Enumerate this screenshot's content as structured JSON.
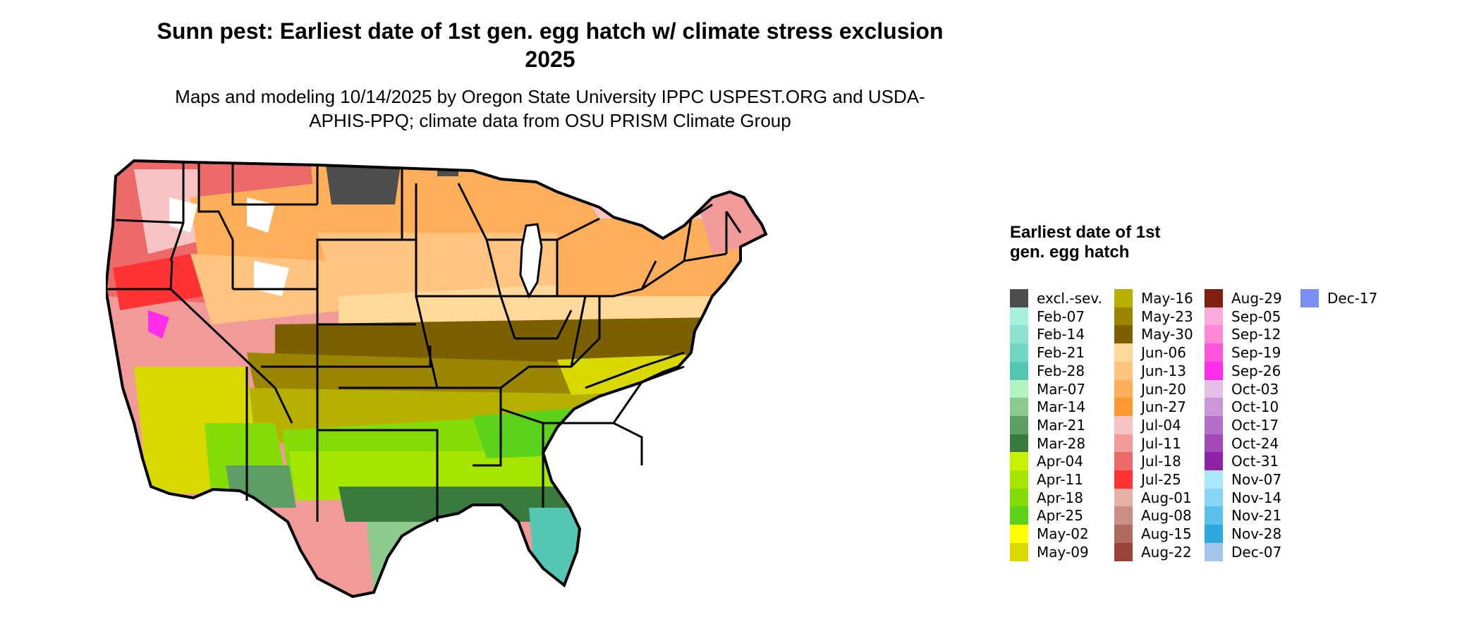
{
  "title": "Sunn pest: Earliest date of 1st gen. egg hatch w/ climate stress exclusion 2025",
  "subtitle": "Maps and modeling 10/14/2025 by Oregon State University IPPC USPEST.ORG and USDA-APHIS-PPQ; climate data from OSU PRISM Climate Group",
  "legend": {
    "title": "Earliest date of 1st gen. egg hatch",
    "columns": [
      [
        {
          "label": "excl.-sev.",
          "color": "#4d4d4d"
        },
        {
          "label": "Feb-07",
          "color": "#a6f0dc"
        },
        {
          "label": "Feb-14",
          "color": "#8ee3d0"
        },
        {
          "label": "Feb-21",
          "color": "#72d8c4"
        },
        {
          "label": "Feb-28",
          "color": "#55c6b4"
        },
        {
          "label": "Mar-07",
          "color": "#b4f2bf"
        },
        {
          "label": "Mar-14",
          "color": "#8cca8e"
        },
        {
          "label": "Mar-21",
          "color": "#5e9e64"
        },
        {
          "label": "Mar-28",
          "color": "#3b7a3d"
        },
        {
          "label": "Apr-04",
          "color": "#c6f200"
        },
        {
          "label": "Apr-11",
          "color": "#a6e600"
        },
        {
          "label": "Apr-18",
          "color": "#86dc08"
        },
        {
          "label": "Apr-25",
          "color": "#5cd21a"
        },
        {
          "label": "May-02",
          "color": "#ffff00"
        },
        {
          "label": "May-09",
          "color": "#d9d900"
        }
      ],
      [
        {
          "label": "May-16",
          "color": "#b7b000"
        },
        {
          "label": "May-23",
          "color": "#9a8600"
        },
        {
          "label": "May-30",
          "color": "#7a6000"
        },
        {
          "label": "Jun-06",
          "color": "#ffd99a"
        },
        {
          "label": "Jun-13",
          "color": "#ffc47f"
        },
        {
          "label": "Jun-20",
          "color": "#ffae5a"
        },
        {
          "label": "Jun-27",
          "color": "#ff9933"
        },
        {
          "label": "Jul-04",
          "color": "#f6c4c4"
        },
        {
          "label": "Jul-11",
          "color": "#f09a9a"
        },
        {
          "label": "Jul-18",
          "color": "#ec6a6a"
        },
        {
          "label": "Jul-25",
          "color": "#ff3333"
        },
        {
          "label": "Aug-01",
          "color": "#e3b1a6"
        },
        {
          "label": "Aug-08",
          "color": "#c98f84"
        },
        {
          "label": "Aug-15",
          "color": "#b06a5e"
        },
        {
          "label": "Aug-22",
          "color": "#99433a"
        }
      ],
      [
        {
          "label": "Aug-29",
          "color": "#7f1f0f"
        },
        {
          "label": "Sep-05",
          "color": "#ffaadd"
        },
        {
          "label": "Sep-12",
          "color": "#ff88d8"
        },
        {
          "label": "Sep-19",
          "color": "#ff55dd"
        },
        {
          "label": "Sep-26",
          "color": "#ff2ee8"
        },
        {
          "label": "Oct-03",
          "color": "#e3c0e8"
        },
        {
          "label": "Oct-10",
          "color": "#cb97d9"
        },
        {
          "label": "Oct-17",
          "color": "#b66fc9"
        },
        {
          "label": "Oct-24",
          "color": "#a44ab8"
        },
        {
          "label": "Oct-31",
          "color": "#8f23a8"
        },
        {
          "label": "Nov-07",
          "color": "#aae8fb"
        },
        {
          "label": "Nov-14",
          "color": "#88d6f5"
        },
        {
          "label": "Nov-21",
          "color": "#5cc0ec"
        },
        {
          "label": "Nov-28",
          "color": "#2fa8e0"
        },
        {
          "label": "Dec-07",
          "color": "#a4c4ea"
        }
      ],
      [
        {
          "label": "Dec-17",
          "color": "#7b8ff0"
        }
      ]
    ]
  }
}
